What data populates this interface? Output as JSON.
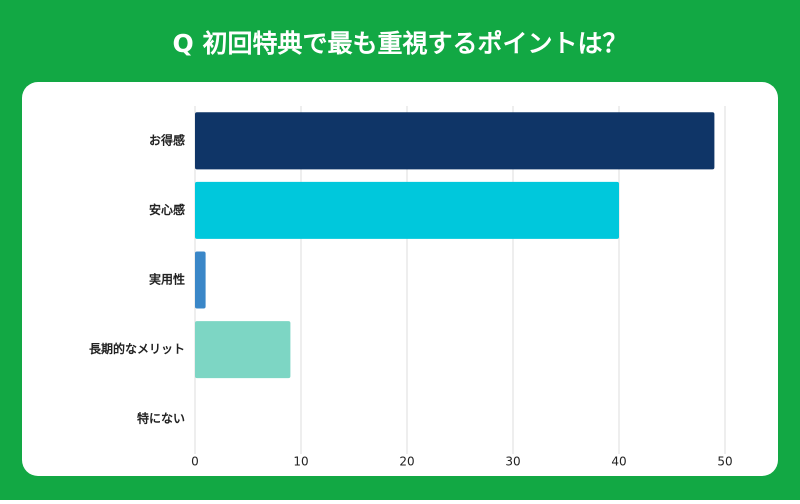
{
  "chart_data": {
    "type": "bar",
    "orientation": "horizontal",
    "title": "Q 初回特典で最も重視するポイントは？",
    "categories": [
      "お得感",
      "安心感",
      "実用性",
      "長期的なメリット",
      "特にない"
    ],
    "values": [
      49,
      40,
      1,
      9,
      0
    ],
    "colors": [
      "#0f3567",
      "#00c8dc",
      "#3a87c8",
      "#7dd6c4",
      "#b0b0b0"
    ],
    "xlim": [
      0,
      50
    ],
    "xticks": [
      0,
      10,
      20,
      30,
      40,
      50
    ],
    "grid": true
  }
}
